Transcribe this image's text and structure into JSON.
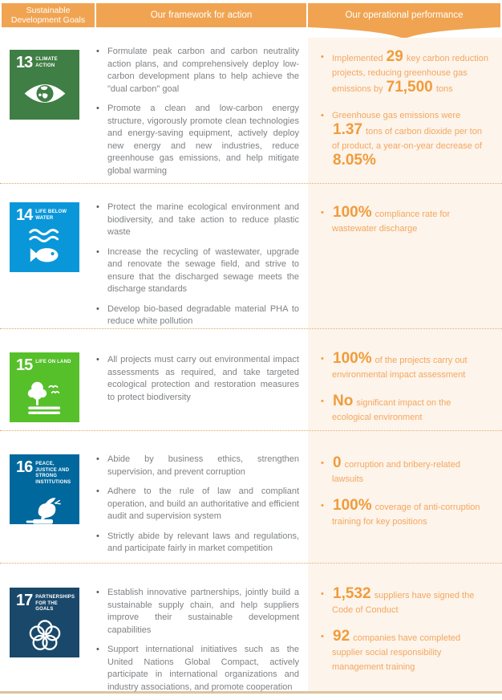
{
  "header": {
    "goals_label": "Sustainable Development Goals",
    "framework_label": "Our framework for action",
    "performance_label": "Our operational performance"
  },
  "colors": {
    "header_orange": "#F0A452",
    "panel_cream": "#FDF4EB",
    "orange_text": "#F3A75F",
    "orange_number": "#F09C3C",
    "gray_text": "#7F8184",
    "dotted_divider": "#E2A566",
    "bottom_line": "#DCC49E",
    "sdg13_green": "#3F7E44",
    "sdg14_blue": "#0A97D9",
    "sdg15_green": "#56C02B",
    "sdg16_blue": "#00689D",
    "sdg17_navy": "#19486A"
  },
  "rows": [
    {
      "goal": {
        "number": "13",
        "title": "CLIMATE ACTION",
        "color": "#3F7E44",
        "icon": "eye-globe-icon"
      },
      "actions": [
        "Formulate peak carbon and carbon neutrality action plans, and comprehensively deploy low-carbon development plans to help achieve the \"dual carbon\" goal",
        "Promote a clean and low-carbon energy structure, vigorously promote clean technologies and energy-saving equipment, actively deploy new energy and new industries, reduce greenhouse gas emissions, and help mitigate global warming"
      ],
      "performance": [
        [
          {
            "t": "Implemented ",
            "em": false
          },
          {
            "t": "29",
            "em": true
          },
          {
            "t": " key carbon reduction projects, reducing greenhouse gas emissions by ",
            "em": false
          },
          {
            "t": "71,500",
            "em": true
          },
          {
            "t": " tons",
            "em": false
          }
        ],
        [
          {
            "t": "Greenhouse gas emissions were ",
            "em": false
          },
          {
            "t": "1.37",
            "em": true
          },
          {
            "t": " tons of carbon dioxide per ton of product, a year-on-year decrease of ",
            "em": false
          },
          {
            "t": "8.05%",
            "em": true
          }
        ]
      ]
    },
    {
      "goal": {
        "number": "14",
        "title": "LIFE BELOW WATER",
        "color": "#0A97D9",
        "icon": "waves-fish-icon"
      },
      "actions": [
        "Protect the marine ecological environment and biodiversity, and take action to reduce plastic waste",
        "Increase the recycling of wastewater, upgrade and renovate the sewage field, and strive to ensure that the discharged sewage meets the discharge standards",
        "Develop bio-based degradable material PHA to reduce white pollution"
      ],
      "performance": [
        [
          {
            "t": "100%",
            "em": true
          },
          {
            "t": " compliance rate for wastewater discharge",
            "em": false
          }
        ]
      ]
    },
    {
      "goal": {
        "number": "15",
        "title": "LIFE ON LAND",
        "color": "#56C02B",
        "icon": "tree-birds-icon"
      },
      "actions": [
        "All projects must carry out environmental impact assessments as required, and take targeted ecological protection and restoration measures to protect biodiversity"
      ],
      "performance": [
        [
          {
            "t": "100%",
            "em": true
          },
          {
            "t": " of the projects carry out environmental impact assessment",
            "em": false
          }
        ],
        [
          {
            "t": "No",
            "em": true
          },
          {
            "t": " significant impact on the ecological environment",
            "em": false
          }
        ]
      ]
    },
    {
      "goal": {
        "number": "16",
        "title": "PEACE, JUSTICE AND STRONG INSTITUTIONS",
        "color": "#00689D",
        "icon": "dove-gavel-icon"
      },
      "actions": [
        "Abide by business ethics, strengthen supervision, and prevent corruption",
        "Adhere to the rule of law and compliant operation, and build an authoritative and efficient audit and supervision system",
        "Strictly abide by relevant laws and regulations, and participate fairly in market competition"
      ],
      "performance": [
        [
          {
            "t": "0",
            "em": true
          },
          {
            "t": " corruption and bribery-related lawsuits",
            "em": false
          }
        ],
        [
          {
            "t": "100%",
            "em": true
          },
          {
            "t": " coverage of anti-corruption training for key positions",
            "em": false
          }
        ]
      ]
    },
    {
      "goal": {
        "number": "17",
        "title": "PARTNERSHIPS FOR THE GOALS",
        "color": "#19486A",
        "icon": "interlocking-circles-icon"
      },
      "actions": [
        "Establish innovative partnerships, jointly build a sustainable supply chain, and help suppliers improve their sustainable development capabilities",
        "Support international initiatives such as the United Nations Global Compact, actively participate in international organizations and industry associations, and promote cooperation"
      ],
      "performance": [
        [
          {
            "t": "1,532",
            "em": true
          },
          {
            "t": " suppliers have signed the Code of Conduct",
            "em": false
          }
        ],
        [
          {
            "t": "92",
            "em": true
          },
          {
            "t": " companies have completed supplier social responsibility management training",
            "em": false
          }
        ]
      ]
    }
  ]
}
